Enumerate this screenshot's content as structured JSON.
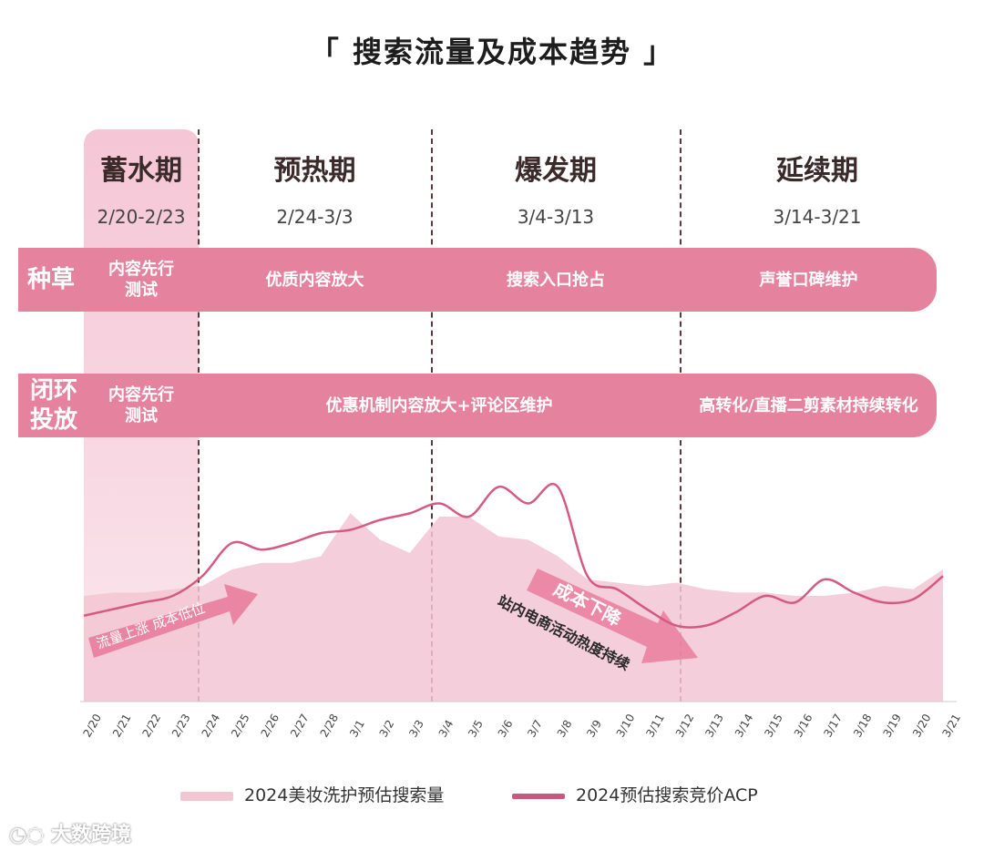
{
  "title": "「 搜索流量及成本趋势 」",
  "phases": [
    {
      "name": "蓄水期",
      "date": "2/20-2/23"
    },
    {
      "name": "预热期",
      "date": "2/24-3/3"
    },
    {
      "name": "爆发期",
      "date": "3/4-3/13"
    },
    {
      "name": "延续期",
      "date": "3/14-3/21"
    }
  ],
  "band1": {
    "label": "种草",
    "items": [
      "内容先行\n测试",
      "优质内容放大",
      "搜索入口抢占",
      "声誉口碑维护"
    ]
  },
  "band2": {
    "label": "闭环\n投放",
    "items": [
      "内容先行\n测试",
      "优惠机制内容放大+评论区维护",
      "高转化/直播二剪素材持续转化"
    ]
  },
  "annotations": {
    "arrow1": "流量上涨 成本低位",
    "arrow2_title": "成本下降",
    "arrow2_sub": "站内电商活动热度持续"
  },
  "chart_data": {
    "type": "area",
    "categories": [
      "2/20",
      "2/21",
      "2/22",
      "2/23",
      "2/24",
      "2/25",
      "2/26",
      "2/27",
      "2/28",
      "3/1",
      "3/2",
      "3/3",
      "3/4",
      "3/5",
      "3/6",
      "3/7",
      "3/8",
      "3/9",
      "3/10",
      "3/11",
      "3/12",
      "3/13",
      "3/14",
      "3/15",
      "3/16",
      "3/17",
      "3/18",
      "3/19",
      "3/20",
      "3/21"
    ],
    "series": [
      {
        "name": "2024美妆洗护预估搜索量",
        "type": "area",
        "values": [
          32,
          33,
          33,
          34,
          35,
          40,
          42,
          42,
          44,
          57,
          49,
          45,
          56,
          56,
          50,
          49,
          44,
          37,
          36,
          35,
          36,
          34,
          33,
          33,
          32,
          32,
          33,
          35,
          34,
          40
        ]
      },
      {
        "name": "2024预估搜索竞价ACP",
        "type": "line",
        "values": [
          26,
          28,
          30,
          32,
          38,
          48,
          46,
          48,
          51,
          52,
          55,
          57,
          60,
          56,
          65,
          60,
          65,
          38,
          34,
          28,
          23,
          23,
          27,
          32,
          30,
          37,
          33,
          30,
          31,
          38
        ]
      }
    ],
    "ylim": [
      0,
      80
    ],
    "xlabel": "",
    "ylabel": "",
    "legend_position": "bottom"
  },
  "legend": [
    {
      "label": "2024美妆洗护预估搜索量",
      "color": "#f2c6d3"
    },
    {
      "label": "2024预估搜索竞价ACP",
      "color": "#c8587c"
    }
  ],
  "colors": {
    "band": "#e5839f",
    "area": "#f2c6d3",
    "line": "#d55a82",
    "arrow": "#e8789a"
  },
  "watermark": "大数跨境"
}
